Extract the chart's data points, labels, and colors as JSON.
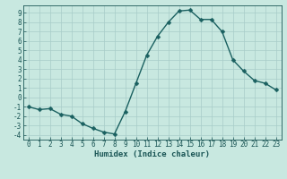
{
  "xlabel": "Humidex (Indice chaleur)",
  "background_color": "#c8e8e0",
  "grid_color": "#a8ccc8",
  "line_color": "#1a6060",
  "marker_color": "#1a6060",
  "x": [
    0,
    1,
    2,
    3,
    4,
    5,
    6,
    7,
    8,
    9,
    10,
    11,
    12,
    13,
    14,
    15,
    16,
    17,
    18,
    19,
    20,
    21,
    22,
    23
  ],
  "y": [
    -1.0,
    -1.3,
    -1.2,
    -1.8,
    -2.0,
    -2.8,
    -3.3,
    -3.7,
    -3.9,
    -1.5,
    1.5,
    4.5,
    6.5,
    8.0,
    9.2,
    9.3,
    8.3,
    8.3,
    7.0,
    4.0,
    2.8,
    1.8,
    1.5,
    0.8
  ],
  "xlim": [
    -0.5,
    23.5
  ],
  "ylim": [
    -4.5,
    9.8
  ],
  "yticks": [
    -4,
    -3,
    -2,
    -1,
    0,
    1,
    2,
    3,
    4,
    5,
    6,
    7,
    8,
    9
  ],
  "xticks": [
    0,
    1,
    2,
    3,
    4,
    5,
    6,
    7,
    8,
    9,
    10,
    11,
    12,
    13,
    14,
    15,
    16,
    17,
    18,
    19,
    20,
    21,
    22,
    23
  ],
  "axis_label_color": "#1a5555",
  "tick_color": "#1a5555",
  "xlabel_fontsize": 6.5,
  "tick_fontsize": 5.5,
  "line_width": 1.0,
  "marker_size": 2.5
}
